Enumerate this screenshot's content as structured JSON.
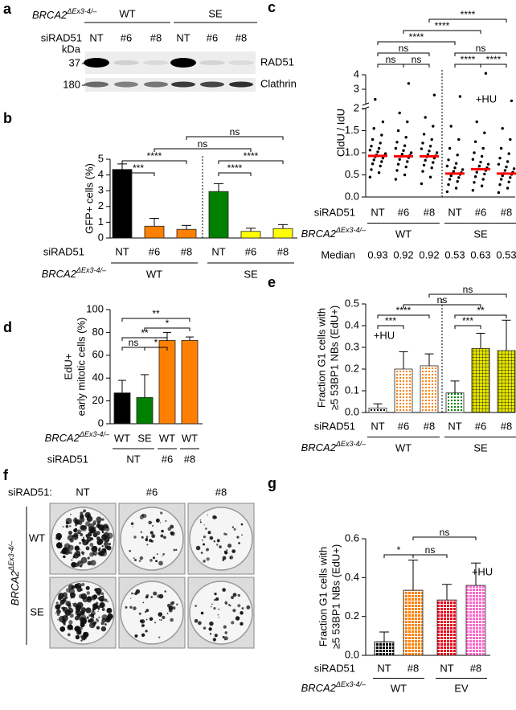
{
  "blot": {
    "panel": "a",
    "genotype": {
      "gene": "BRCA2",
      "allele": "ΔEx3-4/–"
    },
    "groups": [
      "WT",
      "SE"
    ],
    "row_label": "siRAD51",
    "lanes": [
      "NT",
      "#6",
      "#8",
      "NT",
      "#6",
      "#8"
    ],
    "kda_label": "kDa",
    "markers": [
      "37",
      "180"
    ],
    "bands": [
      "RAD51",
      "Clathrin"
    ]
  },
  "colonies": {
    "panel": "f",
    "row_label": "siRAD51:",
    "columns": [
      "NT",
      "#6",
      "#8"
    ],
    "genotype": {
      "gene": "BRCA2",
      "allele": "ΔEx3-4/–"
    },
    "rows": [
      "WT",
      "SE"
    ]
  },
  "chart_data": [
    {
      "panel": "b",
      "type": "bar",
      "ylabel": "GFP+ cells (%)",
      "category_label": "siRAD51",
      "categories": [
        "NT",
        "#6",
        "#8",
        "NT",
        "#6",
        "#8"
      ],
      "group_label": {
        "gene": "BRCA2",
        "allele": "ΔEx3-4/–"
      },
      "groups": [
        "WT",
        "SE"
      ],
      "group_sizes": [
        3,
        3
      ],
      "values": [
        4.35,
        0.75,
        0.55,
        2.95,
        0.42,
        0.6
      ],
      "errors": [
        0.35,
        0.5,
        0.25,
        0.5,
        0.2,
        0.25
      ],
      "colors": [
        "#000000",
        "#ff8000",
        "#ff8000",
        "#008000",
        "#ffff00",
        "#ffff00"
      ],
      "ylim": [
        0,
        5
      ],
      "yticks": [
        0,
        1,
        2,
        3,
        4,
        5
      ],
      "group_divider": true,
      "brackets": [
        {
          "from": 0,
          "to": 1,
          "label": "***"
        },
        {
          "from": 0,
          "to": 2,
          "label": "****"
        },
        {
          "from": 1,
          "to": 4,
          "label": "ns"
        },
        {
          "from": 2,
          "to": 5,
          "label": "ns"
        },
        {
          "from": 3,
          "to": 4,
          "label": "****"
        },
        {
          "from": 3,
          "to": 5,
          "label": "****"
        }
      ]
    },
    {
      "panel": "c",
      "type": "dot",
      "ylabel": "CldU / IdU",
      "category_label": "siRAD51",
      "categories": [
        "NT",
        "#6",
        "#8",
        "NT",
        "#6",
        "#8"
      ],
      "group_label": {
        "gene": "BRCA2",
        "allele": "ΔEx3-4/–"
      },
      "groups": [
        "WT",
        "SE"
      ],
      "group_sizes": [
        3,
        3
      ],
      "color": "#000000",
      "median_color": "#ff0000",
      "median_label": "Median",
      "medians": [
        0.93,
        0.92,
        0.92,
        0.53,
        0.63,
        0.53
      ],
      "points": [
        [
          0.45,
          0.55,
          0.62,
          0.7,
          0.75,
          0.8,
          0.84,
          0.88,
          0.91,
          0.93,
          0.95,
          0.98,
          1.02,
          1.06,
          1.1,
          1.15,
          1.22,
          1.3,
          1.4,
          1.55,
          1.7,
          2.3
        ],
        [
          0.4,
          0.5,
          0.6,
          0.68,
          0.74,
          0.8,
          0.85,
          0.89,
          0.92,
          0.94,
          0.97,
          1.0,
          1.05,
          1.1,
          1.16,
          1.24,
          1.35,
          1.5,
          1.7,
          1.9,
          3.4
        ],
        [
          0.3,
          0.45,
          0.58,
          0.66,
          0.72,
          0.78,
          0.83,
          0.88,
          0.91,
          0.93,
          0.96,
          1.0,
          1.04,
          1.09,
          1.15,
          1.22,
          1.3,
          1.42,
          1.6,
          1.8,
          2.6
        ],
        [
          0.12,
          0.2,
          0.28,
          0.35,
          0.4,
          0.44,
          0.48,
          0.51,
          0.53,
          0.55,
          0.58,
          0.62,
          0.66,
          0.7,
          0.76,
          0.84,
          0.95,
          1.1,
          1.3,
          1.6,
          2.5
        ],
        [
          0.15,
          0.25,
          0.33,
          0.4,
          0.46,
          0.52,
          0.56,
          0.6,
          0.63,
          0.66,
          0.7,
          0.74,
          0.79,
          0.85,
          0.92,
          1.0,
          1.1,
          1.25,
          1.45,
          1.7,
          4.1
        ],
        [
          0.1,
          0.2,
          0.28,
          0.34,
          0.4,
          0.44,
          0.48,
          0.51,
          0.53,
          0.56,
          0.6,
          0.64,
          0.68,
          0.74,
          0.8,
          0.88,
          0.98,
          1.1,
          1.3,
          1.55,
          2.2
        ]
      ],
      "ylim": [
        0,
        4
      ],
      "ybreak": 2,
      "yticks": [
        {
          "value": 0,
          "label": "0.0"
        },
        0.5,
        {
          "value": 1,
          "label": "1.0"
        },
        1.5,
        2,
        3,
        4
      ],
      "group_divider": true,
      "annotation": "+HU",
      "brackets": [
        {
          "from": 0,
          "to": 1,
          "label": "ns"
        },
        {
          "from": 1,
          "to": 2,
          "label": "ns"
        },
        {
          "from": 0,
          "to": 2,
          "label": "ns"
        },
        {
          "from": 0,
          "to": 3,
          "label": "****"
        },
        {
          "from": 1,
          "to": 4,
          "label": "****"
        },
        {
          "from": 2,
          "to": 5,
          "label": "****"
        },
        {
          "from": 3,
          "to": 4,
          "label": "****"
        },
        {
          "from": 4,
          "to": 5,
          "label": "****"
        },
        {
          "from": 3,
          "to": 5,
          "label": "ns"
        }
      ]
    },
    {
      "panel": "d",
      "type": "bar",
      "ylabel": [
        "EdU+",
        "early mitotic cells (%)"
      ],
      "category_label": {
        "gene": "BRCA2",
        "allele": "ΔEx3-4/–"
      },
      "categories": [
        "WT",
        "SE",
        "WT",
        "WT"
      ],
      "group_label": "siRAD51",
      "groups": [
        "NT",
        "#6",
        "#8"
      ],
      "group_sizes": [
        2,
        1,
        1
      ],
      "values": [
        27,
        23,
        73,
        73
      ],
      "errors": [
        11,
        20,
        7,
        3
      ],
      "colors": [
        "#000000",
        "#008000",
        "#ff8000",
        "#ff8000"
      ],
      "ylim": [
        0,
        100
      ],
      "yticks": [
        0,
        20,
        40,
        60,
        80,
        100
      ],
      "brackets": [
        {
          "from": 0,
          "to": 1,
          "label": "ns"
        },
        {
          "from": 1,
          "to": 2,
          "label": "*"
        },
        {
          "from": 0,
          "to": 2,
          "label": "**"
        },
        {
          "from": 1,
          "to": 3,
          "label": "*"
        },
        {
          "from": 0,
          "to": 3,
          "label": "**"
        }
      ]
    },
    {
      "panel": "e",
      "type": "bar",
      "ylabel": [
        "Fraction G1 cells with",
        "≥5 53BP1 NBs (EdU+)"
      ],
      "category_label": "siRAD51",
      "categories": [
        "NT",
        "#6",
        "#8",
        "NT",
        "#6",
        "#8"
      ],
      "group_label": {
        "gene": "BRCA2",
        "allele": "ΔEx3-4/–"
      },
      "groups": [
        "WT",
        "SE"
      ],
      "group_sizes": [
        3,
        3
      ],
      "values": [
        0.02,
        0.2,
        0.215,
        0.09,
        0.295,
        0.285
      ],
      "errors": [
        0.02,
        0.08,
        0.055,
        0.055,
        0.07,
        0.14
      ],
      "colors": [
        "#000000",
        "#ff8000",
        "#ff8000",
        "#008000",
        "#e6e600",
        "#e6e600"
      ],
      "pattern": [
        "dots",
        "dots",
        "dots",
        "dots",
        "grid",
        "grid"
      ],
      "ylim": [
        0,
        0.5
      ],
      "yticks": [
        {
          "value": 0,
          "label": "0.0"
        },
        0.1,
        0.2,
        0.3,
        0.4,
        0.5
      ],
      "group_divider": true,
      "annotation": "+HU",
      "brackets": [
        {
          "from": 0,
          "to": 1,
          "label": "***"
        },
        {
          "from": 0,
          "to": 2,
          "label": "****"
        },
        {
          "from": 1,
          "to": 4,
          "label": "ns"
        },
        {
          "from": 2,
          "to": 5,
          "label": "ns"
        },
        {
          "from": 3,
          "to": 4,
          "label": "***"
        },
        {
          "from": 3,
          "to": 5,
          "label": "**"
        }
      ]
    },
    {
      "panel": "g",
      "type": "bar",
      "ylabel": [
        "Fraction G1 cells with",
        "≥5 53BP1 NBs (EdU+)"
      ],
      "category_label": "siRAD51",
      "categories": [
        "NT",
        "#8",
        "NT",
        "#8"
      ],
      "group_label": {
        "gene": "BRCA2",
        "allele": "ΔEx3-4/–"
      },
      "groups": [
        "WT",
        "EV"
      ],
      "group_sizes": [
        2,
        2
      ],
      "values": [
        0.07,
        0.335,
        0.285,
        0.36
      ],
      "errors": [
        0.05,
        0.155,
        0.08,
        0.115
      ],
      "colors": [
        "#000000",
        "#ff8000",
        "#e8001c",
        "#ff66cc"
      ],
      "pattern": [
        "checks",
        "checks",
        "checks",
        "checks"
      ],
      "ylim": [
        0,
        0.6
      ],
      "yticks": [
        {
          "value": 0,
          "label": "0.0"
        },
        0.2,
        0.4,
        0.6
      ],
      "annotation": "+HU",
      "brackets": [
        {
          "from": 0,
          "to": 1,
          "label": "*"
        },
        {
          "from": 1,
          "to": 2,
          "label": "ns"
        },
        {
          "from": 1,
          "to": 3,
          "label": "ns"
        }
      ]
    }
  ]
}
